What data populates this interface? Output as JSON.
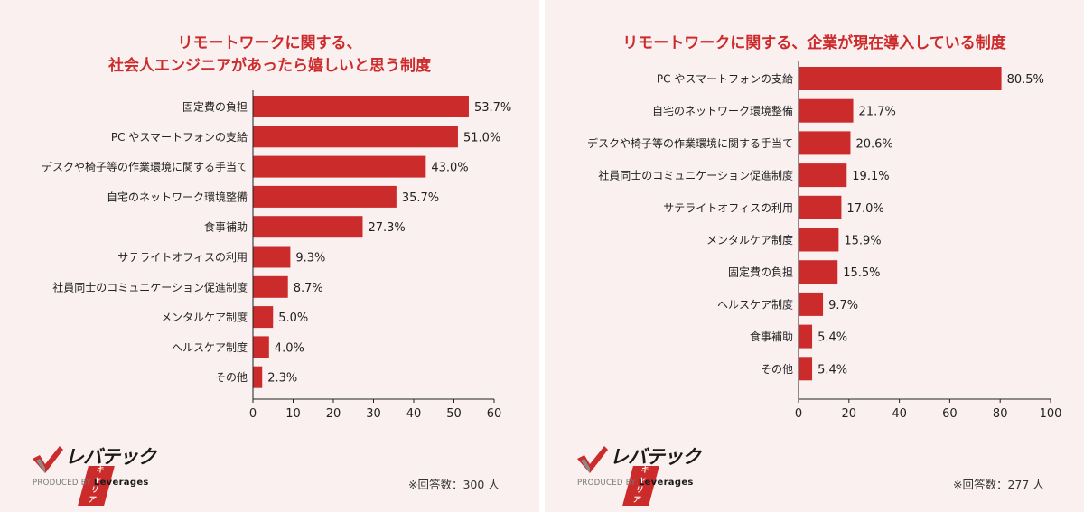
{
  "brand": {
    "name": "レバテック",
    "sub": "キャリア",
    "tagline_prefix": "PRODUCED BY",
    "tagline_company": "Leverages",
    "accent": "#cc2b2b"
  },
  "chart_data": [
    {
      "type": "bar",
      "orientation": "horizontal",
      "title": [
        "リモートワークに関する、",
        "社会人エンジニアがあったら嬉しいと思う制度"
      ],
      "categories": [
        "固定費の負担",
        "PC やスマートフォンの支給",
        "デスクや椅子等の作業環境に関する手当て",
        "自宅のネットワーク環境整備",
        "食事補助",
        "サテライトオフィスの利用",
        "社員同士のコミュニケーション促進制度",
        "メンタルケア制度",
        "ヘルスケア制度",
        "その他"
      ],
      "values": [
        53.7,
        51.0,
        43.0,
        35.7,
        27.3,
        9.3,
        8.7,
        5.0,
        4.0,
        2.3
      ],
      "value_labels": [
        "53.7%",
        "51.0%",
        "43.0%",
        "35.7%",
        "27.3%",
        "9.3%",
        "8.7%",
        "5.0%",
        "4.0%",
        "2.3%"
      ],
      "xlim": [
        0,
        60
      ],
      "xticks": [
        "0",
        "10",
        "20",
        "30",
        "40",
        "50",
        "60"
      ],
      "bar_color": "#cc2b2b",
      "grid": false,
      "note": "※回答数：300 人"
    },
    {
      "type": "bar",
      "orientation": "horizontal",
      "title": [
        "リモートワークに関する、企業が現在導入している制度"
      ],
      "categories": [
        "PC やスマートフォンの支給",
        "自宅のネットワーク環境整備",
        "デスクや椅子等の作業環境に関する手当て",
        "社員同士のコミュニケーション促進制度",
        "サテライトオフィスの利用",
        "メンタルケア制度",
        "固定費の負担",
        "ヘルスケア制度",
        "食事補助",
        "その他"
      ],
      "values": [
        80.5,
        21.7,
        20.6,
        19.1,
        17.0,
        15.9,
        15.5,
        9.7,
        5.4,
        5.4
      ],
      "value_labels": [
        "80.5%",
        "21.7%",
        "20.6%",
        "19.1%",
        "17.0%",
        "15.9%",
        "15.5%",
        "9.7%",
        "5.4%",
        "5.4%"
      ],
      "xlim": [
        0,
        100
      ],
      "xticks": [
        "0",
        "20",
        "40",
        "60",
        "80",
        "100"
      ],
      "bar_color": "#cc2b2b",
      "grid": false,
      "note": "※回答数：277 人"
    }
  ]
}
